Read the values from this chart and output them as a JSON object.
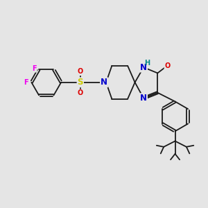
{
  "background_color": "#e5e5e5",
  "bond_color": "#1a1a1a",
  "bond_lw": 1.3,
  "atom_colors": {
    "F": "#ee00ee",
    "S": "#cccc00",
    "N": "#0000cc",
    "O": "#dd0000",
    "H": "#008888",
    "C": "#1a1a1a"
  },
  "fs_large": 8.5,
  "fs_small": 7.0,
  "scale": 10
}
